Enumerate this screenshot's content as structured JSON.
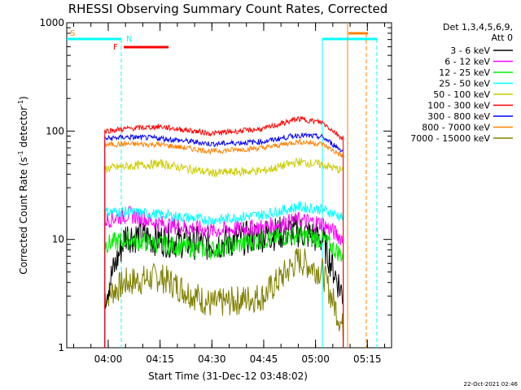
{
  "chart_data": {
    "type": "line",
    "title": "RHESSI Observing Summary Count Rates, Corrected",
    "xlabel": "Start Time (31-Dec-12 03:48:02)",
    "ylabel_main": "Corrected Count Rate (s",
    "ylabel_sup1": "-1",
    "ylabel_mid": " detector",
    "ylabel_sup2": "-1",
    "ylabel_end": ")",
    "yscale": "log",
    "ylim": [
      1,
      1000
    ],
    "xlim": [
      "03:48",
      "05:22"
    ],
    "yticks": [
      {
        "value": 1,
        "label": "1"
      },
      {
        "value": 10,
        "label": "10"
      },
      {
        "value": 100,
        "label": "100"
      },
      {
        "value": 1000,
        "label": "1000"
      }
    ],
    "xticks": [
      {
        "value": "04:00",
        "label": "04:00"
      },
      {
        "value": "04:15",
        "label": "04:15"
      },
      {
        "value": "04:30",
        "label": "04:30"
      },
      {
        "value": "04:45",
        "label": "04:45"
      },
      {
        "value": "05:00",
        "label": "05:00"
      },
      {
        "value": "05:15",
        "label": "05:15"
      }
    ],
    "legend": {
      "placement": "right",
      "header1": "Det 1,3,4,5,6,9,",
      "header2": "Att 0"
    },
    "series": [
      {
        "name": "3 - 6 keV",
        "color": "#000000",
        "values": [
          [
            "03:59",
            3
          ],
          [
            "04:05",
            11
          ],
          [
            "04:15",
            10
          ],
          [
            "04:30",
            9
          ],
          [
            "04:45",
            11
          ],
          [
            "04:55",
            12
          ],
          [
            "05:02",
            10
          ],
          [
            "05:08",
            3
          ]
        ]
      },
      {
        "name": "6 - 12 keV",
        "color": "#ff00ff",
        "values": [
          [
            "03:59",
            15
          ],
          [
            "04:06",
            17
          ],
          [
            "04:15",
            14
          ],
          [
            "04:30",
            12
          ],
          [
            "04:45",
            13
          ],
          [
            "04:55",
            15
          ],
          [
            "05:02",
            14
          ],
          [
            "05:08",
            10
          ]
        ]
      },
      {
        "name": "12 - 25 keV",
        "color": "#00ee00",
        "values": [
          [
            "03:59",
            9
          ],
          [
            "04:05",
            10
          ],
          [
            "04:15",
            9
          ],
          [
            "04:30",
            8
          ],
          [
            "04:45",
            10
          ],
          [
            "04:55",
            11
          ],
          [
            "05:02",
            10
          ],
          [
            "05:08",
            7
          ]
        ]
      },
      {
        "name": "25 - 50 keV",
        "color": "#00ffff",
        "values": [
          [
            "03:59",
            18
          ],
          [
            "04:05",
            18
          ],
          [
            "04:15",
            17
          ],
          [
            "04:30",
            15
          ],
          [
            "04:45",
            17
          ],
          [
            "04:55",
            20
          ],
          [
            "05:02",
            19
          ],
          [
            "05:08",
            16
          ]
        ]
      },
      {
        "name": "50 - 100 keV",
        "color": "#cccc00",
        "values": [
          [
            "03:59",
            45
          ],
          [
            "04:05",
            47
          ],
          [
            "04:15",
            50
          ],
          [
            "04:30",
            41
          ],
          [
            "04:45",
            43
          ],
          [
            "04:55",
            52
          ],
          [
            "05:02",
            49
          ],
          [
            "05:08",
            43
          ]
        ]
      },
      {
        "name": "100 - 300 keV",
        "color": "#ff0000",
        "values": [
          [
            "03:59",
            100
          ],
          [
            "04:05",
            105
          ],
          [
            "04:15",
            110
          ],
          [
            "04:30",
            95
          ],
          [
            "04:45",
            105
          ],
          [
            "04:55",
            130
          ],
          [
            "05:02",
            120
          ],
          [
            "05:08",
            85
          ]
        ]
      },
      {
        "name": "300 - 800 keV",
        "color": "#0000ff",
        "values": [
          [
            "03:59",
            85
          ],
          [
            "04:05",
            88
          ],
          [
            "04:15",
            86
          ],
          [
            "04:30",
            76
          ],
          [
            "04:45",
            80
          ],
          [
            "04:55",
            92
          ],
          [
            "05:02",
            88
          ],
          [
            "05:08",
            65
          ]
        ]
      },
      {
        "name": "800 - 7000 keV",
        "color": "#ff8000",
        "values": [
          [
            "03:59",
            75
          ],
          [
            "04:05",
            76
          ],
          [
            "04:15",
            75
          ],
          [
            "04:30",
            65
          ],
          [
            "04:45",
            70
          ],
          [
            "04:55",
            80
          ],
          [
            "05:02",
            76
          ],
          [
            "05:08",
            58
          ]
        ]
      },
      {
        "name": "7000 - 15000 keV",
        "color": "#808000",
        "values": [
          [
            "03:59",
            3
          ],
          [
            "04:05",
            4
          ],
          [
            "04:15",
            4.5
          ],
          [
            "04:30",
            2.5
          ],
          [
            "04:45",
            3
          ],
          [
            "04:55",
            6.5
          ],
          [
            "05:02",
            5
          ],
          [
            "05:08",
            1.5
          ]
        ]
      }
    ],
    "flags": [
      {
        "label": "S",
        "color": "#ff8000"
      },
      {
        "label": "N",
        "color": "#00ffff"
      },
      {
        "label": "F",
        "color": "#ff0000"
      }
    ],
    "footer_timestamp": "22-Oct-2021 02:46"
  }
}
